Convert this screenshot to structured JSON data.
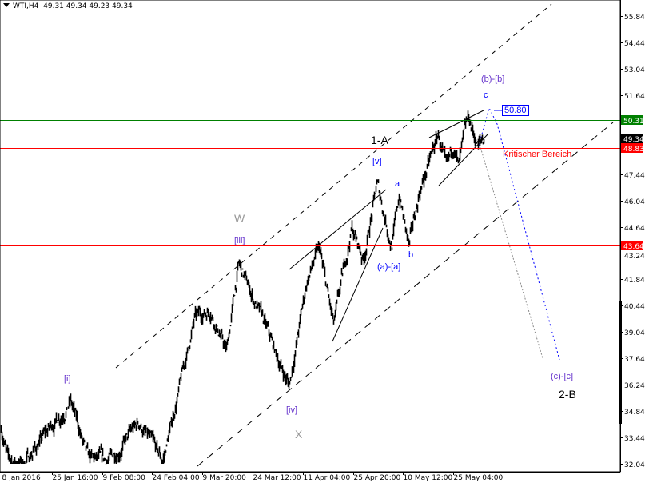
{
  "header": {
    "symbol": "WTI,H4",
    "ohlc": "49.31 49.34 49.23 49.34"
  },
  "colors": {
    "bars": "#000000",
    "resistance": "#008000",
    "support": "#ff0000",
    "wave_blue": "#0000ff",
    "wave_purple": "#6633cc",
    "wave_gray": "#999999",
    "label_dark": "#000000",
    "projection_gray": "#888888"
  },
  "chart_data": {
    "type": "line",
    "style": "ohlc-bars",
    "ylim": [
      32.04,
      55.84
    ],
    "y_ticks": [
      "55.84",
      "54.44",
      "53.04",
      "51.64",
      "50.31",
      "49.34",
      "48.83",
      "47.44",
      "46.04",
      "44.64",
      "43.64",
      "43.24",
      "41.84",
      "40.44",
      "39.04",
      "37.64",
      "36.24",
      "34.84",
      "33.44",
      "32.04"
    ],
    "x_ticks": [
      {
        "label": "8 Jan 2016",
        "t": "2016-01-08T00:00"
      },
      {
        "label": "25 Jan 16:00",
        "t": "2016-01-25T16:00"
      },
      {
        "label": "9 Feb 08:00",
        "t": "2016-02-09T08:00"
      },
      {
        "label": "24 Feb 04:00",
        "t": "2016-02-24T04:00"
      },
      {
        "label": "9 Mar 20:00",
        "t": "2016-03-09T20:00"
      },
      {
        "label": "24 Mar 12:00",
        "t": "2016-03-24T12:00"
      },
      {
        "label": "11 Apr 04:00",
        "t": "2016-04-11T04:00"
      },
      {
        "label": "25 Apr 20:00",
        "t": "2016-04-25T20:00"
      },
      {
        "label": "10 May 12:00",
        "t": "2016-05-10T12:00"
      },
      {
        "label": "25 May 04:00",
        "t": "2016-05-25T04:00"
      }
    ],
    "swings": [
      [
        "2016-01-07T12:00",
        34.2
      ],
      [
        "2016-01-10T06:00",
        32.2
      ],
      [
        "2016-01-15T20:00",
        32.1
      ],
      [
        "2016-01-31T01:00",
        35.4
      ],
      [
        "2016-02-05T04:00",
        32.2
      ],
      [
        "2016-02-10T23:00",
        32.1
      ],
      [
        "2016-02-20T06:00",
        34.2
      ],
      [
        "2016-02-27T04:00",
        32.1
      ],
      [
        "2016-03-07T12:00",
        39.7
      ],
      [
        "2016-03-12T03:00",
        40.3
      ],
      [
        "2016-03-16T20:00",
        38.0
      ],
      [
        "2016-03-20T08:00",
        42.6
      ],
      [
        "2016-03-27T22:00",
        39.7
      ],
      [
        "2016-04-01T04:00",
        38.0
      ],
      [
        "2016-04-06T07:00",
        36.2
      ],
      [
        "2016-04-12T09:00",
        41.8
      ],
      [
        "2016-04-15T21:00",
        43.4
      ],
      [
        "2016-04-20T04:00",
        39.3
      ],
      [
        "2016-04-25T09:00",
        44.6
      ],
      [
        "2016-04-28T20:00",
        42.9
      ],
      [
        "2016-05-02T20:00",
        46.9
      ],
      [
        "2016-05-07T01:00",
        43.7
      ],
      [
        "2016-05-09T08:00",
        46.3
      ],
      [
        "2016-05-12T04:00",
        43.5
      ],
      [
        "2016-05-15T05:00",
        46.5
      ],
      [
        "2016-05-20T17:00",
        49.5
      ],
      [
        "2016-05-23T02:00",
        47.5
      ],
      [
        "2016-05-25T10:00",
        49.0
      ],
      [
        "2016-05-26T14:00",
        47.8
      ],
      [
        "2016-05-29T11:00",
        50.3
      ],
      [
        "2016-06-01T07:00",
        48.95
      ],
      [
        "2016-06-03T04:00",
        49.34
      ]
    ],
    "levels": [
      {
        "price": 50.31,
        "label": "50.31",
        "color": "#008000"
      },
      {
        "price": 48.83,
        "label": "48.83",
        "color": "#ff0000"
      },
      {
        "price": 43.64,
        "label": "43.64",
        "color": "#ff0000"
      }
    ],
    "current_price": {
      "label": "49.34"
    },
    "target_box": "50.80",
    "annotations": {
      "w": "W",
      "iii": "[iii]",
      "i": "[i]",
      "iv": "[iv]",
      "x": "X",
      "v": "[v]",
      "a": "a",
      "one_a": "1-A",
      "a_a": "(a)-[a]",
      "b": "b",
      "c": "c",
      "b_b": "(b)-[b]",
      "kritisch": "Kritischer Bereich",
      "c_c": "(c)-[c]",
      "two_b": "2-B"
    }
  }
}
